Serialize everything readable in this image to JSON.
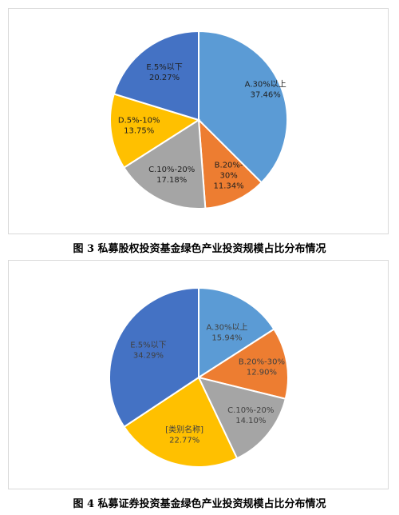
{
  "captions": {
    "fig3": "图 3  私募股权投资基金绿色产业投资规模占比分布情况",
    "fig4": "图 4  私募证券投资基金绿色产业投资规模占比分布情况"
  },
  "chart_data": [
    {
      "type": "pie",
      "title": "",
      "start_angle_deg": 0,
      "direction": "clockwise",
      "slices": [
        {
          "label": "A.30%以上",
          "value_label": "37.46%",
          "value": 37.46,
          "color": "#5b9bd5",
          "text_color": "#1f1f1f"
        },
        {
          "label": "B.20%-30%",
          "value_label": "11.34%",
          "value": 11.34,
          "color": "#ed7d31",
          "text_color": "#1f1f1f"
        },
        {
          "label": "C.10%-20%",
          "value_label": "17.18%",
          "value": 17.18,
          "color": "#a5a5a5",
          "text_color": "#1f1f1f"
        },
        {
          "label": "D.5%-10%",
          "value_label": "13.75%",
          "value": 13.75,
          "color": "#ffc000",
          "text_color": "#1f1f1f"
        },
        {
          "label": "E.5%以下",
          "value_label": "20.27%",
          "value": 20.27,
          "color": "#4472c4",
          "text_color": "#1f1f1f"
        }
      ]
    },
    {
      "type": "pie",
      "title": "",
      "start_angle_deg": 0,
      "direction": "clockwise",
      "slices": [
        {
          "label": "A.30%以上",
          "value_label": "15.94%",
          "value": 15.94,
          "color": "#5b9bd5",
          "text_color": "#404040"
        },
        {
          "label": "B.20%-30%",
          "value_label": "12.90%",
          "value": 12.9,
          "color": "#ed7d31",
          "text_color": "#404040"
        },
        {
          "label": "C.10%-20%",
          "value_label": "14.10%",
          "value": 14.1,
          "color": "#a5a5a5",
          "text_color": "#404040"
        },
        {
          "label": "[类别名称]",
          "value_label": "22.77%",
          "value": 22.77,
          "color": "#ffc000",
          "text_color": "#404040"
        },
        {
          "label": "E.5%以下",
          "value_label": "34.29%",
          "value": 34.29,
          "color": "#4472c4",
          "text_color": "#404040"
        }
      ]
    }
  ]
}
